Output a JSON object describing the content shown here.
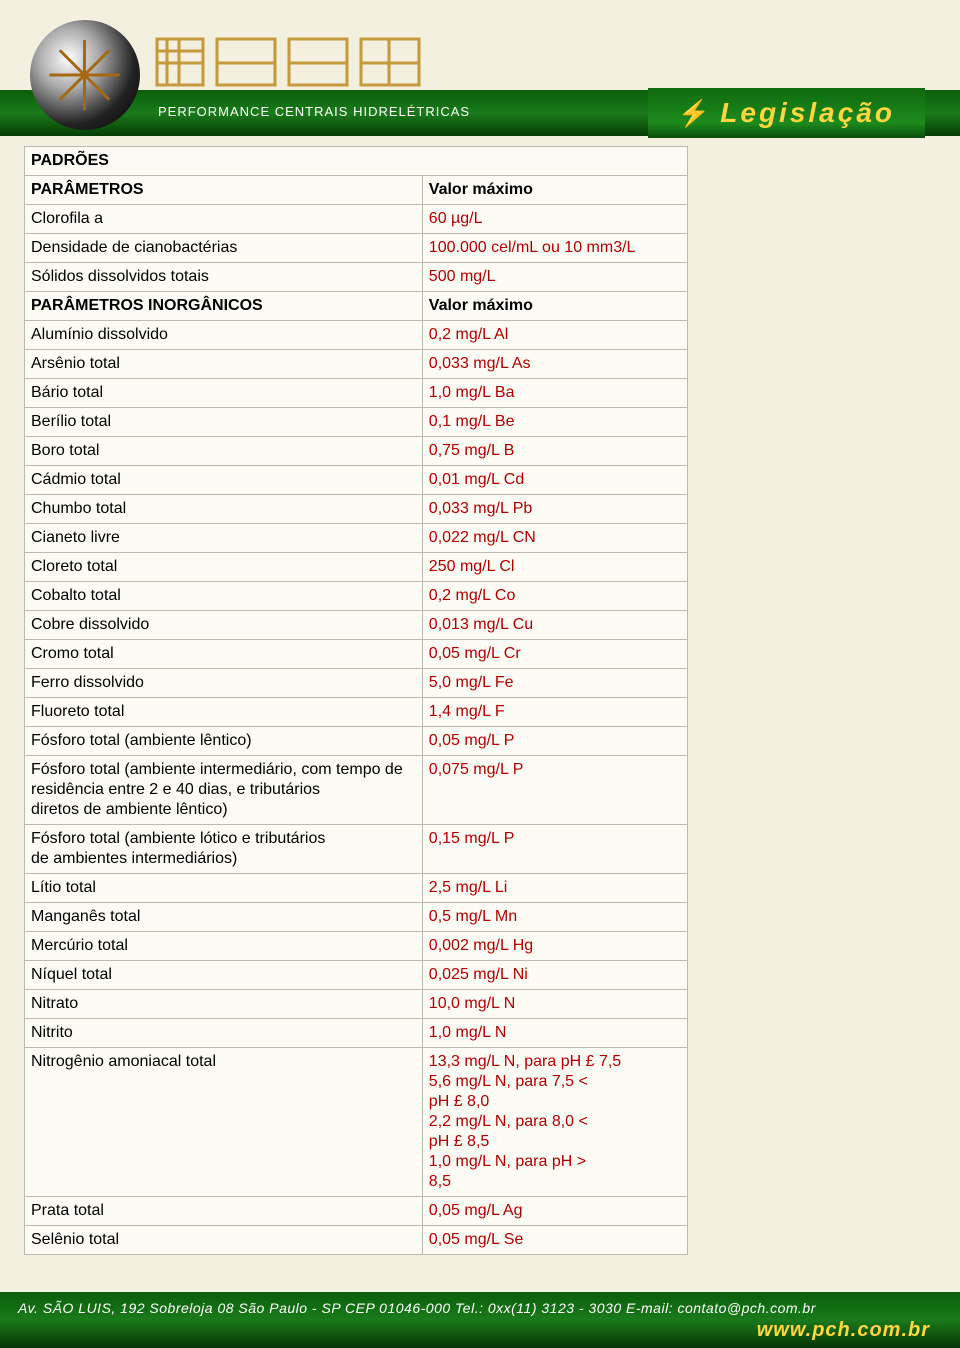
{
  "header": {
    "subtitle": "PERFORMANCE CENTRAIS HIDRELÉTRICAS",
    "badge": "Legislação"
  },
  "table": {
    "section1_title": "PADRÕES",
    "section2_param": "PARÂMETROS",
    "section2_val": "Valor máximo",
    "rows1": [
      {
        "p": "Clorofila a",
        "v": "60 µg/L"
      },
      {
        "p": "Densidade de cianobactérias",
        "v": "100.000 cel/mL ou 10 mm3/L"
      },
      {
        "p": "Sólidos dissolvidos totais",
        "v": "500 mg/L"
      }
    ],
    "section3_param": "PARÂMETROS INORGÂNICOS",
    "section3_val": "Valor máximo",
    "rows2": [
      {
        "p": "Alumínio dissolvido",
        "v": "0,2 mg/L Al"
      },
      {
        "p": "Arsênio total",
        "v": "0,033 mg/L As"
      },
      {
        "p": "Bário total",
        "v": "1,0 mg/L Ba"
      },
      {
        "p": "Berílio total",
        "v": "0,1 mg/L Be"
      },
      {
        "p": "Boro total",
        "v": "0,75 mg/L B"
      },
      {
        "p": "Cádmio total",
        "v": "0,01 mg/L Cd"
      },
      {
        "p": "Chumbo total",
        "v": "0,033 mg/L Pb"
      },
      {
        "p": "Cianeto livre",
        "v": "0,022 mg/L CN"
      },
      {
        "p": "Cloreto total",
        "v": "250 mg/L Cl"
      },
      {
        "p": "Cobalto total",
        "v": "0,2 mg/L Co"
      },
      {
        "p": "Cobre dissolvido",
        "v": "0,013 mg/L Cu"
      },
      {
        "p": "Cromo total",
        "v": "0,05 mg/L Cr"
      },
      {
        "p": "Ferro dissolvido",
        "v": "5,0 mg/L Fe"
      },
      {
        "p": "Fluoreto total",
        "v": "1,4 mg/L F"
      },
      {
        "p": "Fósforo total (ambiente lêntico)",
        "v": "0,05 mg/L P"
      },
      {
        "p": "Fósforo total (ambiente intermediário, com tempo de residência entre 2 e 40 dias, e tributários\ndiretos de ambiente lêntico)",
        "v": "0,075 mg/L P"
      },
      {
        "p": "Fósforo total (ambiente lótico e tributários\nde ambientes intermediários)",
        "v": "0,15 mg/L P"
      },
      {
        "p": "Lítio total",
        "v": "2,5 mg/L Li"
      },
      {
        "p": "Manganês total",
        "v": "0,5 mg/L Mn"
      },
      {
        "p": "Mercúrio total",
        "v": "0,002 mg/L Hg"
      },
      {
        "p": "Níquel total",
        "v": "0,025 mg/L Ni"
      },
      {
        "p": "Nitrato",
        "v": "10,0 mg/L N"
      },
      {
        "p": "Nitrito",
        "v": "1,0 mg/L N"
      },
      {
        "p": "Nitrogênio amoniacal total",
        "v": "13,3 mg/L N, para pH £ 7,5\n5,6 mg/L N, para 7,5 <\npH £ 8,0\n2,2 mg/L N, para 8,0 <\npH £ 8,5\n1,0 mg/L N, para pH >\n8,5"
      },
      {
        "p": "Prata total",
        "v": "0,05 mg/L Ag"
      },
      {
        "p": "Selênio total",
        "v": "0,05 mg/L Se"
      }
    ]
  },
  "footer": {
    "line1_a": "Av. SÃO LUIS, 192 Sobreloja 08  São Paulo - SP CEP 01046-000 Tel.: 0xx(11) 3123 - 3030  E-mail: ",
    "email": "contato@pch.com.br",
    "url": "www.pch.com.br"
  },
  "colors": {
    "page_bg": "#f3f0e0",
    "green_dark": "#063d06",
    "green_mid": "#1a7a1a",
    "accent_yellow": "#ffd640",
    "table_bg": "#fdfcf4",
    "table_border": "#bbb9b0",
    "value_red": "#b00000"
  }
}
